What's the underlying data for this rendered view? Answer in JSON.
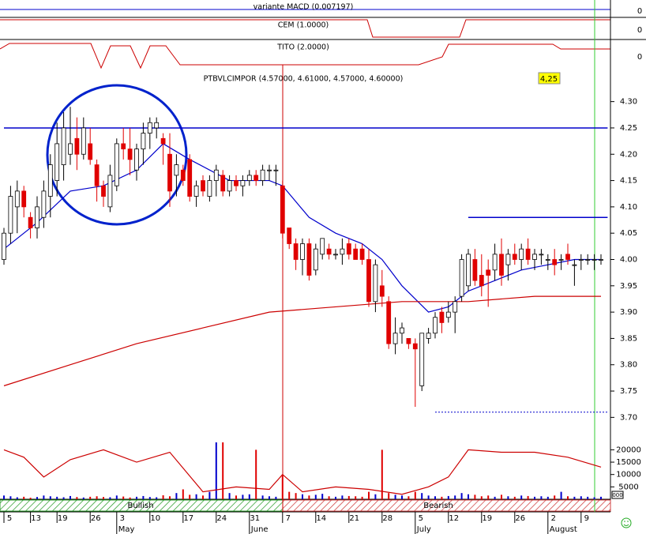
{
  "chart_data": {
    "type": "candlestick",
    "title": "PTBVLCIMPOR (4.57000, 4.61000, 4.57000, 4.60000)",
    "price_badge": "4,25",
    "panels": {
      "macd": "variante MACD (0.007197)",
      "cem": "CEM (1.0000)",
      "tito": "TITO (2.0000)",
      "zero_labels": [
        "0",
        "0",
        "0"
      ]
    },
    "trend_labels": {
      "bullish": "Bullish",
      "bearish": "Bearish"
    },
    "corner_label": "000",
    "categories": [
      "5",
      null,
      null,
      null,
      "13",
      null,
      null,
      null,
      "19",
      null,
      null,
      null,
      null,
      "26",
      null,
      null,
      null,
      "3",
      null,
      null,
      null,
      null,
      "10",
      null,
      null,
      null,
      null,
      "17",
      null,
      null,
      null,
      null,
      "24",
      null,
      null,
      null,
      null,
      "31",
      null,
      null,
      null,
      null,
      "7",
      null,
      null,
      null,
      null,
      "14",
      null,
      null,
      null,
      null,
      "21",
      null,
      null,
      null,
      null,
      "28",
      null,
      null,
      null,
      null,
      "5",
      null,
      null,
      null,
      null,
      "12",
      null,
      null,
      null,
      null,
      "19",
      null,
      null,
      null,
      null,
      "26",
      null,
      null,
      null,
      null,
      "2",
      null,
      null,
      null,
      null,
      "9",
      null,
      null,
      null
    ],
    "months": [
      {
        "label": "May",
        "index": 17
      },
      {
        "label": "June",
        "index": 37
      },
      {
        "label": "July",
        "index": 62
      },
      {
        "label": "August",
        "index": 82
      }
    ],
    "open": [
      4.0,
      4.05,
      4.1,
      4.13,
      4.08,
      4.06,
      4.08,
      4.12,
      4.15,
      4.18,
      4.2,
      4.23,
      4.2,
      4.22,
      4.18,
      4.14,
      4.1,
      4.14,
      4.22,
      4.21,
      4.17,
      4.21,
      4.24,
      4.25,
      4.23,
      4.2,
      4.16,
      4.17,
      4.19,
      4.12,
      4.15,
      4.12,
      4.15,
      4.16,
      4.13,
      4.15,
      4.14,
      4.15,
      4.16,
      4.15,
      4.17,
      4.17,
      4.14,
      4.06,
      4.03,
      4.0,
      4.03,
      3.98,
      4.01,
      4.02,
      4.01,
      4.01,
      4.03,
      4.02,
      4.02,
      4.0,
      3.92,
      3.95,
      3.92,
      3.84,
      3.86,
      3.85,
      3.84,
      3.76,
      3.85,
      3.86,
      3.9,
      3.89,
      3.9,
      3.93,
      3.95,
      4.0,
      3.97,
      3.98,
      3.98,
      4.01,
      3.99,
      4.01,
      4.0,
      4.02,
      4.0,
      4.01,
      4.0,
      4.0,
      4.0,
      4.01,
      3.99,
      4.0,
      4.0,
      4.0,
      4.0
    ],
    "high": [
      4.06,
      4.14,
      4.15,
      4.14,
      4.09,
      4.12,
      4.15,
      4.2,
      4.26,
      4.28,
      4.29,
      4.27,
      4.27,
      4.25,
      4.19,
      4.15,
      4.18,
      4.23,
      4.25,
      4.25,
      4.22,
      4.26,
      4.27,
      4.27,
      4.24,
      4.24,
      4.2,
      4.18,
      4.2,
      4.15,
      4.16,
      4.16,
      4.18,
      4.17,
      4.16,
      4.16,
      4.16,
      4.17,
      4.17,
      4.18,
      4.18,
      4.18,
      4.15,
      4.06,
      4.04,
      4.04,
      4.04,
      4.03,
      4.04,
      4.03,
      4.02,
      4.04,
      4.04,
      4.03,
      4.03,
      4.02,
      4.0,
      3.98,
      3.93,
      3.89,
      3.88,
      3.85,
      3.85,
      3.86,
      3.87,
      3.9,
      3.91,
      3.92,
      3.93,
      4.01,
      4.02,
      4.02,
      4.01,
      4.0,
      4.03,
      4.04,
      4.02,
      4.03,
      4.03,
      4.04,
      4.02,
      4.02,
      4.01,
      4.02,
      4.01,
      4.03,
      4.0,
      4.01,
      4.01,
      4.01,
      4.01
    ],
    "low": [
      3.99,
      4.03,
      4.05,
      4.08,
      4.04,
      4.04,
      4.06,
      4.08,
      4.12,
      4.15,
      4.18,
      4.17,
      4.19,
      4.18,
      4.11,
      4.1,
      4.09,
      4.13,
      4.19,
      4.16,
      4.15,
      4.18,
      4.21,
      4.23,
      4.18,
      4.1,
      4.12,
      4.14,
      4.11,
      4.1,
      4.12,
      4.11,
      4.12,
      4.12,
      4.12,
      4.13,
      4.12,
      4.14,
      4.14,
      4.14,
      4.15,
      4.14,
      4.04,
      4.02,
      3.98,
      3.97,
      3.96,
      3.97,
      4.0,
      4.0,
      4.0,
      3.99,
      4.0,
      4.0,
      3.99,
      3.91,
      3.9,
      3.91,
      3.83,
      3.82,
      3.84,
      3.83,
      3.72,
      3.75,
      3.84,
      3.85,
      3.86,
      3.88,
      3.86,
      3.92,
      3.94,
      3.95,
      3.93,
      3.91,
      3.96,
      3.95,
      3.96,
      3.99,
      3.98,
      3.99,
      3.98,
      3.99,
      3.98,
      3.97,
      3.98,
      3.99,
      3.95,
      3.98,
      3.99,
      3.98,
      3.99
    ],
    "close": [
      4.05,
      4.12,
      4.13,
      4.1,
      4.06,
      4.1,
      4.13,
      4.18,
      4.22,
      4.25,
      4.22,
      4.2,
      4.25,
      4.19,
      4.14,
      4.12,
      4.16,
      4.22,
      4.21,
      4.19,
      4.21,
      4.24,
      4.26,
      4.26,
      4.22,
      4.13,
      4.18,
      4.15,
      4.12,
      4.14,
      4.13,
      4.15,
      4.17,
      4.13,
      4.15,
      4.14,
      4.15,
      4.16,
      4.15,
      4.17,
      4.17,
      4.17,
      4.05,
      4.03,
      4.0,
      4.03,
      3.97,
      4.02,
      4.04,
      4.01,
      4.01,
      4.02,
      4.01,
      4.0,
      4.0,
      3.92,
      3.99,
      3.93,
      3.84,
      3.86,
      3.87,
      3.84,
      3.83,
      3.86,
      3.86,
      3.89,
      3.88,
      3.9,
      3.92,
      4.0,
      4.01,
      3.96,
      3.95,
      3.97,
      4.01,
      3.97,
      4.01,
      4.0,
      4.02,
      4.0,
      4.01,
      4.01,
      4.0,
      3.99,
      4.0,
      4.0,
      3.99,
      4.0,
      4.0,
      4.0,
      4.0
    ],
    "up_color": "#ffffff",
    "down_color": "#e00000",
    "ylim": [
      3.66,
      4.37
    ],
    "yticks": [
      {
        "value": 4.3,
        "label": "4.30"
      },
      4.25,
      {
        "value": 4.2,
        "label": "4.20"
      },
      4.15,
      {
        "value": 4.1,
        "label": "4.10"
      },
      4.05,
      {
        "value": 4.0,
        "label": "4.00"
      },
      3.95,
      {
        "value": 3.9,
        "label": "3.90"
      },
      3.85,
      {
        "value": 3.8,
        "label": "3.80"
      },
      3.75,
      {
        "value": 3.7,
        "label": "3.70"
      }
    ],
    "lines": [
      {
        "color": "#0000cc",
        "x": [
          0,
          5,
          10,
          15,
          20,
          24,
          28,
          34,
          40,
          42,
          46,
          50,
          54,
          57,
          60,
          64,
          67,
          70,
          74,
          78,
          82,
          86,
          90
        ],
        "values": [
          4.02,
          4.07,
          4.13,
          4.14,
          4.17,
          4.22,
          4.19,
          4.15,
          4.15,
          4.14,
          4.08,
          4.05,
          4.03,
          4.0,
          3.95,
          3.9,
          3.91,
          3.94,
          3.96,
          3.98,
          3.99,
          4.0,
          4.0
        ]
      },
      {
        "color": "#cc0000",
        "x": [
          0,
          10,
          20,
          30,
          40,
          50,
          60,
          70,
          80,
          90
        ],
        "values": [
          3.76,
          3.8,
          3.84,
          3.87,
          3.9,
          3.91,
          3.92,
          3.92,
          3.93,
          3.93
        ]
      }
    ],
    "hlines": [
      {
        "value": 4.25,
        "from": 0,
        "to": 91,
        "color": "#0000cc",
        "dashed": false
      },
      {
        "value": 4.08,
        "from": 70,
        "to": 91,
        "color": "#0000cc",
        "dashed": false
      },
      {
        "value": 3.71,
        "from": 65,
        "to": 91,
        "color": "#0000cc",
        "dashed": true
      }
    ],
    "volume": [
      1500,
      1200,
      800,
      1000,
      600,
      900,
      1500,
      1200,
      1000,
      800,
      1300,
      900,
      700,
      1000,
      1200,
      900,
      800,
      1500,
      1100,
      700,
      1000,
      1300,
      900,
      800,
      1600,
      1200,
      2500,
      4000,
      1800,
      2000,
      1500,
      3000,
      23000,
      23000,
      2500,
      1500,
      1800,
      2000,
      20000,
      1500,
      1200,
      1000,
      10000,
      3000,
      2500,
      2000,
      1500,
      1800,
      2200,
      1200,
      1000,
      1500,
      1300,
      1200,
      1000,
      3000,
      2000,
      20000,
      2500,
      1800,
      1500,
      1200,
      3000,
      2500,
      1500,
      1200,
      1000,
      1300,
      1500,
      2500,
      2000,
      1800,
      1200,
      1500,
      1000,
      1800,
      1200,
      1000,
      1500,
      1300,
      1000,
      1200,
      1000,
      1500,
      3000,
      1200,
      1000,
      1200,
      1000,
      800,
      1000
    ],
    "volume_ylim": [
      0,
      23000
    ],
    "volume_ticks": [
      20000,
      15000,
      10000,
      5000
    ],
    "oscillator": {
      "color": "#cc0000",
      "x": [
        0,
        3,
        6,
        10,
        15,
        20,
        25,
        30,
        35,
        40,
        42,
        45,
        50,
        55,
        60,
        64,
        67,
        70,
        75,
        80,
        85,
        90
      ],
      "values": [
        20000,
        17000,
        9000,
        16000,
        20000,
        15000,
        19000,
        3000,
        5000,
        4000,
        10000,
        3000,
        5000,
        4000,
        2000,
        5000,
        9000,
        20000,
        19000,
        19000,
        17000,
        13000
      ]
    }
  }
}
